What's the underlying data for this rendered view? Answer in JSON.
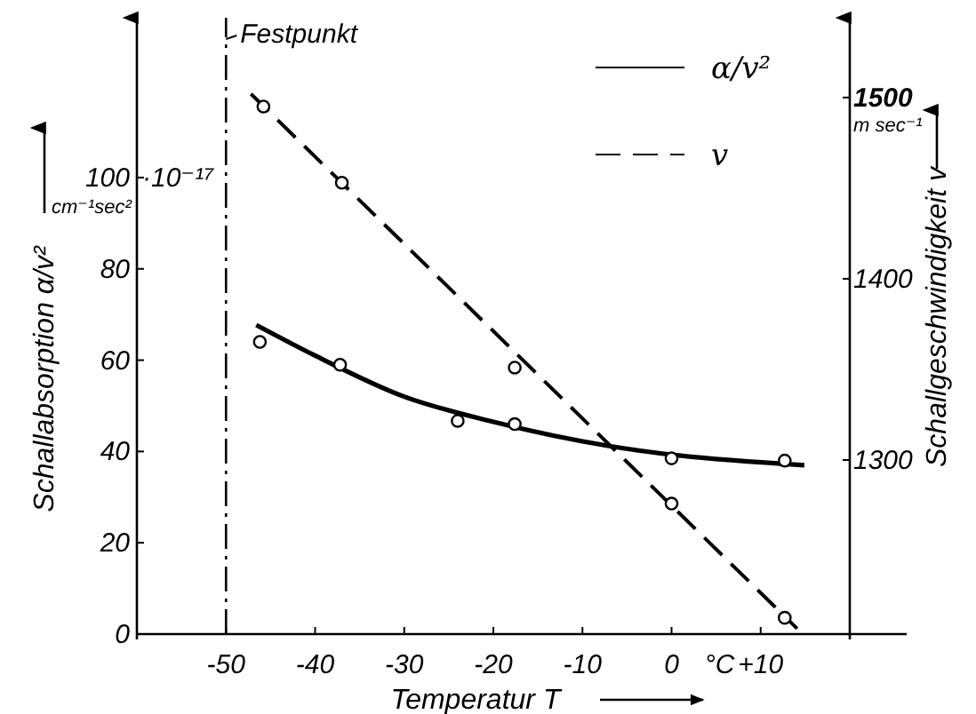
{
  "chart_data": {
    "type": "line",
    "xlabel": "Temperatur T",
    "ylabel": "Schallabsorption α/v²",
    "y2label": "Schallgeschwindigkeit v",
    "xlim": [
      -60,
      20
    ],
    "xticks": [
      -50,
      -40,
      -30,
      -20,
      -10,
      0,
      {
        "value": 10,
        "label": "+10"
      }
    ],
    "ylim": [
      0,
      135
    ],
    "yticks": [
      0,
      20,
      40,
      60,
      80,
      100
    ],
    "y2lim": [
      1204,
      1544
    ],
    "y2ticks": [
      1300,
      1400,
      1500
    ],
    "ref_lines": [
      {
        "axis": "x",
        "value": -50,
        "label": "Festpunkt",
        "line_style": "dashdot",
        "color": "#000000"
      }
    ],
    "annotations": [
      "·10⁻¹⁷",
      "cm⁻¹sec²",
      "m sec⁻¹",
      "°C"
    ],
    "legend": "top right",
    "grid": false,
    "series": [
      {
        "name": "α/v²",
        "color": "#000000",
        "line_style": "solid",
        "marker": "none",
        "x": [
          -46.6,
          -40,
          -30,
          -20,
          -7,
          0,
          14.9
        ],
        "values": [
          67.7,
          61,
          52,
          46.5,
          41.2,
          39.3,
          37
        ]
      },
      {
        "type": "scatter",
        "color": "#000000",
        "marker": "circle",
        "x": [
          -46.2,
          -37.2,
          -24,
          -17.6,
          0,
          12.7
        ],
        "values": [
          64,
          59,
          46.7,
          46,
          38.5,
          38
        ]
      },
      {
        "name": "v",
        "axis": "y2",
        "color": "#000000",
        "line_style": "dashed",
        "marker": "none",
        "x": [
          -47.2,
          14.1
        ],
        "values": [
          1502,
          1207
        ]
      },
      {
        "type": "scatter",
        "axis": "y2",
        "color": "#000000",
        "marker": "circle",
        "x": [
          -45.8,
          -37,
          -17.6,
          0,
          12.7
        ],
        "values": [
          1495,
          1453,
          1351,
          1276,
          1213
        ]
      }
    ]
  }
}
